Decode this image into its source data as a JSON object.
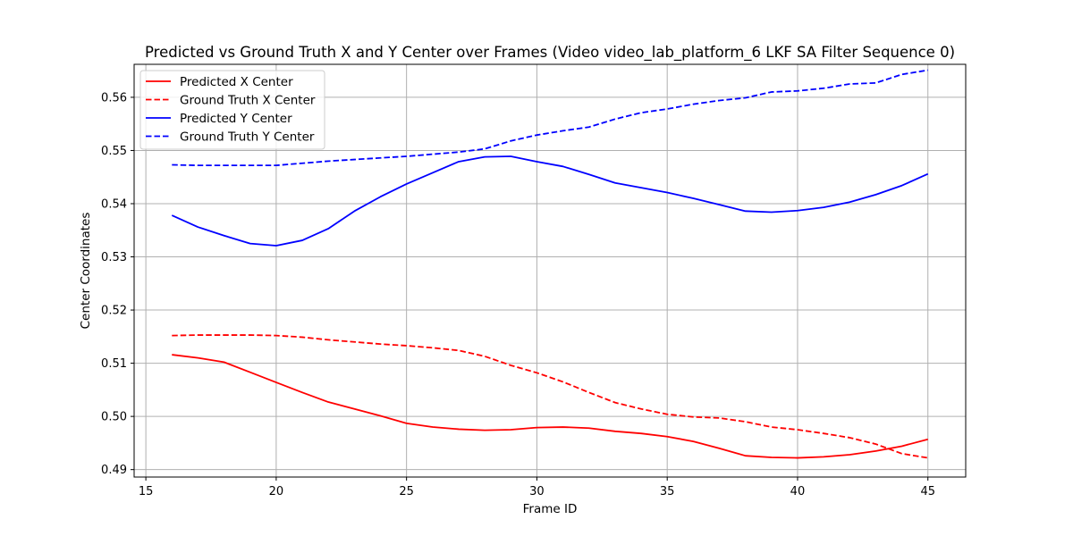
{
  "chart_data": {
    "type": "line",
    "title": "Predicted vs Ground Truth X and Y Center over Frames (Video video_lab_platform_6 LKF SA Filter Sequence 0)",
    "xlabel": "Frame ID",
    "ylabel": "Center Coordinates",
    "xlim": [
      14.55,
      46.45
    ],
    "ylim": [
      0.4886,
      0.5662
    ],
    "xticks": [
      15,
      20,
      25,
      30,
      35,
      40,
      45
    ],
    "yticks": [
      0.49,
      0.5,
      0.51,
      0.52,
      0.53,
      0.54,
      0.55,
      0.56
    ],
    "ytick_labels": [
      "0.49",
      "0.50",
      "0.51",
      "0.52",
      "0.53",
      "0.54",
      "0.55",
      "0.56"
    ],
    "grid": true,
    "legend_position": "upper-left",
    "x": [
      16,
      17,
      18,
      19,
      20,
      21,
      22,
      23,
      24,
      25,
      26,
      27,
      28,
      29,
      30,
      31,
      32,
      33,
      34,
      35,
      36,
      37,
      38,
      39,
      40,
      41,
      42,
      43,
      44,
      45
    ],
    "series": [
      {
        "name": "Predicted X Center",
        "color": "#ff0000",
        "style": "solid",
        "values": [
          0.5116,
          0.511,
          0.5102,
          0.5083,
          0.5064,
          0.5045,
          0.5027,
          0.5014,
          0.5001,
          0.4987,
          0.498,
          0.4976,
          0.4974,
          0.4975,
          0.4979,
          0.498,
          0.4978,
          0.4972,
          0.4968,
          0.4962,
          0.4953,
          0.494,
          0.4926,
          0.4923,
          0.4922,
          0.4924,
          0.4928,
          0.4935,
          0.4944,
          0.4957
        ]
      },
      {
        "name": "Ground Truth X Center",
        "color": "#ff0000",
        "style": "dashed",
        "values": [
          0.5152,
          0.5153,
          0.5153,
          0.5153,
          0.5152,
          0.5149,
          0.5144,
          0.514,
          0.5136,
          0.5133,
          0.5129,
          0.5124,
          0.5113,
          0.5096,
          0.5082,
          0.5065,
          0.5045,
          0.5026,
          0.5014,
          0.5004,
          0.4999,
          0.4997,
          0.499,
          0.498,
          0.4975,
          0.4968,
          0.496,
          0.4948,
          0.493,
          0.4922
        ]
      },
      {
        "name": "Predicted Y Center",
        "color": "#0000ff",
        "style": "solid",
        "values": [
          0.5378,
          0.5356,
          0.534,
          0.5325,
          0.5321,
          0.5331,
          0.5353,
          0.5386,
          0.5413,
          0.5437,
          0.5458,
          0.5479,
          0.5488,
          0.5489,
          0.5479,
          0.547,
          0.5455,
          0.5439,
          0.543,
          0.5421,
          0.541,
          0.5398,
          0.5386,
          0.5384,
          0.5387,
          0.5393,
          0.5403,
          0.5417,
          0.5434,
          0.5456
        ]
      },
      {
        "name": "Ground Truth Y Center",
        "color": "#0000ff",
        "style": "dashed",
        "values": [
          0.5473,
          0.5472,
          0.5472,
          0.5472,
          0.5472,
          0.5476,
          0.548,
          0.5483,
          0.5486,
          0.5489,
          0.5493,
          0.5497,
          0.5503,
          0.5518,
          0.5529,
          0.5537,
          0.5544,
          0.5559,
          0.5571,
          0.5578,
          0.5587,
          0.5594,
          0.5599,
          0.561,
          0.5612,
          0.5617,
          0.5625,
          0.5627,
          0.5643,
          0.5651
        ]
      }
    ]
  }
}
